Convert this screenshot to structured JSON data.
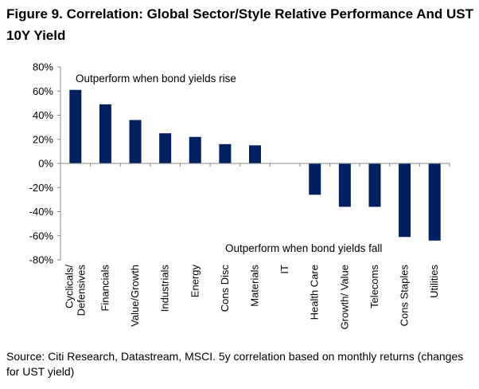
{
  "title": "Figure 9. Correlation: Global Sector/Style Relative Performance And UST 10Y Yield",
  "source": "Source: Citi Research, Datastream, MSCI. 5y correlation based on monthly returns (changes for UST yield)",
  "chart_data": {
    "type": "bar",
    "categories": [
      "Cyclicals/ Defensives",
      "Financials",
      "Value/Growth",
      "Industrials",
      "Energy",
      "Cons Disc",
      "Materials",
      "IT",
      "Health Care",
      "Growth/ Value",
      "Telecoms",
      "Cons Staples",
      "Utilities"
    ],
    "values": [
      61,
      49,
      36,
      25,
      22,
      16,
      15,
      0,
      -26,
      -36,
      -36,
      -61,
      -64
    ],
    "ylim": [
      -80,
      80
    ],
    "yticks": [
      80,
      60,
      40,
      20,
      0,
      -20,
      -40,
      -60,
      -80
    ],
    "ytick_labels": [
      "80%",
      "60%",
      "40%",
      "20%",
      "0%",
      "-20%",
      "-40%",
      "-60%",
      "-80%"
    ],
    "grid": false,
    "bar_color": "#002060",
    "annotations": [
      {
        "text": "Outperform when bond yields rise"
      },
      {
        "text": "Outperform when bond yields fall"
      }
    ]
  }
}
